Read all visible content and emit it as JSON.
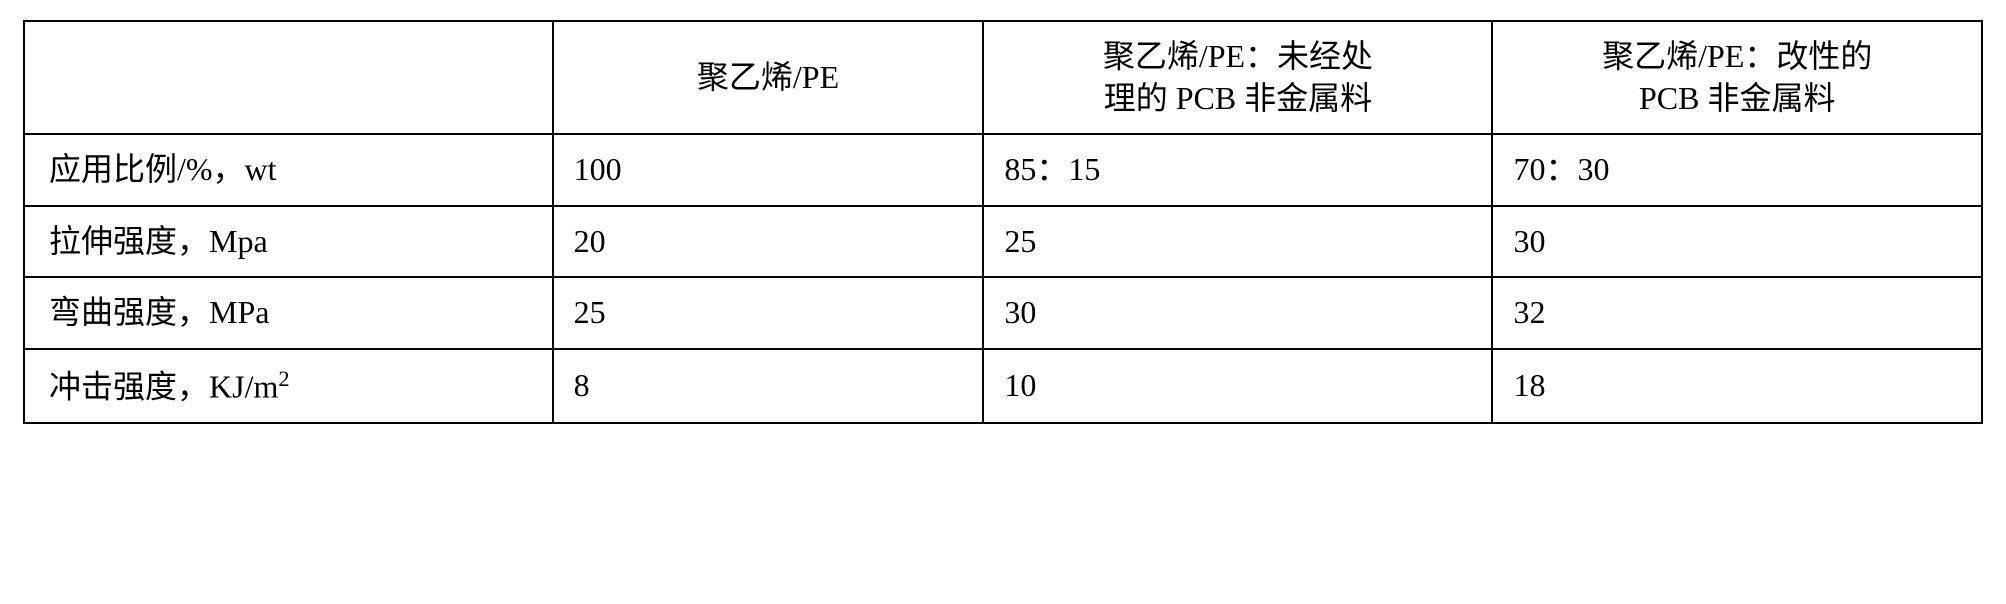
{
  "table": {
    "type": "table",
    "border_color": "#000000",
    "background_color": "#ffffff",
    "text_color": "#000000",
    "font_family": "SimSun",
    "font_size_pt": 24,
    "columns": [
      {
        "key": "label",
        "header": "",
        "width_pct": 27,
        "align": "left"
      },
      {
        "key": "pe",
        "header": "聚乙烯/PE",
        "width_pct": 22,
        "align": "center"
      },
      {
        "key": "untreated",
        "header_line1": "聚乙烯/PE：未经处",
        "header_line2": "理的 PCB 非金属料",
        "width_pct": 26,
        "align": "center"
      },
      {
        "key": "modified",
        "header_line1": "聚乙烯/PE：改性的",
        "header_line2": "PCB 非金属料",
        "width_pct": 25,
        "align": "center"
      }
    ],
    "rows": [
      {
        "label": "应用比例/%，wt",
        "pe": "100",
        "untreated": "85：15",
        "modified": "70：30"
      },
      {
        "label": "拉伸强度，Mpa",
        "pe": "20",
        "untreated": "25",
        "modified": "30"
      },
      {
        "label": "弯曲强度，MPa",
        "pe": "25",
        "untreated": "30",
        "modified": "32"
      },
      {
        "label_prefix": "冲击强度，KJ/m",
        "label_sup": "2",
        "pe": "8",
        "untreated": "10",
        "modified": "18"
      }
    ]
  }
}
